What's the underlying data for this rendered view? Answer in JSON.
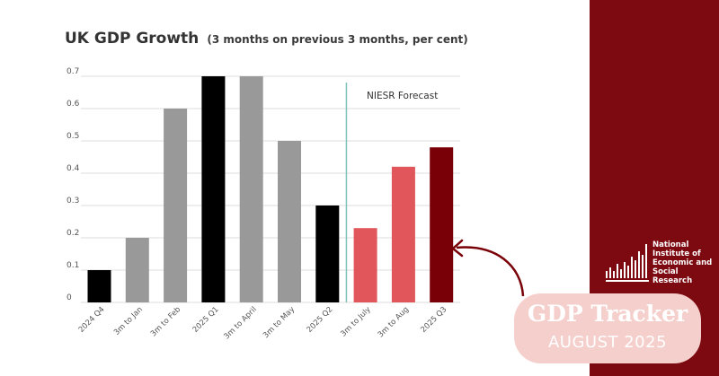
{
  "header": {
    "title": "UK GDP Growth",
    "subtitle": "(3 months on previous 3 months, per cent)"
  },
  "chart_data": {
    "type": "bar",
    "title": "UK GDP Growth",
    "subtitle": "(3 months on previous 3 months, per cent)",
    "categories": [
      "2024 Q4",
      "3m to Jan",
      "3m to Feb",
      "2025 Q1",
      "3m to April",
      "3m to May",
      "2025 Q2",
      "3m to July",
      "3m to Aug",
      "2025 Q3"
    ],
    "values": [
      0.1,
      0.2,
      0.6,
      0.7,
      0.7,
      0.5,
      0.3,
      0.23,
      0.42,
      0.48
    ],
    "bar_colors": [
      "#000000",
      "#999999",
      "#999999",
      "#000000",
      "#999999",
      "#999999",
      "#000000",
      "#e0565b",
      "#e0565b",
      "#7a0008"
    ],
    "ylim": [
      0,
      0.7
    ],
    "yticks": [
      0,
      0.1,
      0.2,
      0.3,
      0.4,
      0.5,
      0.6,
      0.7
    ],
    "ytick_labels": [
      "0",
      "0.1",
      "0.2",
      "0.3",
      "0.4",
      "0.5",
      "0.6",
      "0.7"
    ],
    "grid": true,
    "xlabel": "",
    "ylabel": "",
    "annotations": [
      {
        "text": "NIESR Forecast",
        "after_category": "2025 Q2",
        "line_color": "#7fc4b8"
      }
    ]
  },
  "branding": {
    "logo_lines": [
      "National",
      "Institute of",
      "Economic and",
      "Social Research"
    ],
    "tracker_title": "GDP Tracker",
    "tracker_date": "AUGUST 2025"
  },
  "colors": {
    "panel": "#7d0a10",
    "badge": "#f4cfcc",
    "arrow": "#7a0008",
    "forecast_line": "#7fc4b8"
  }
}
